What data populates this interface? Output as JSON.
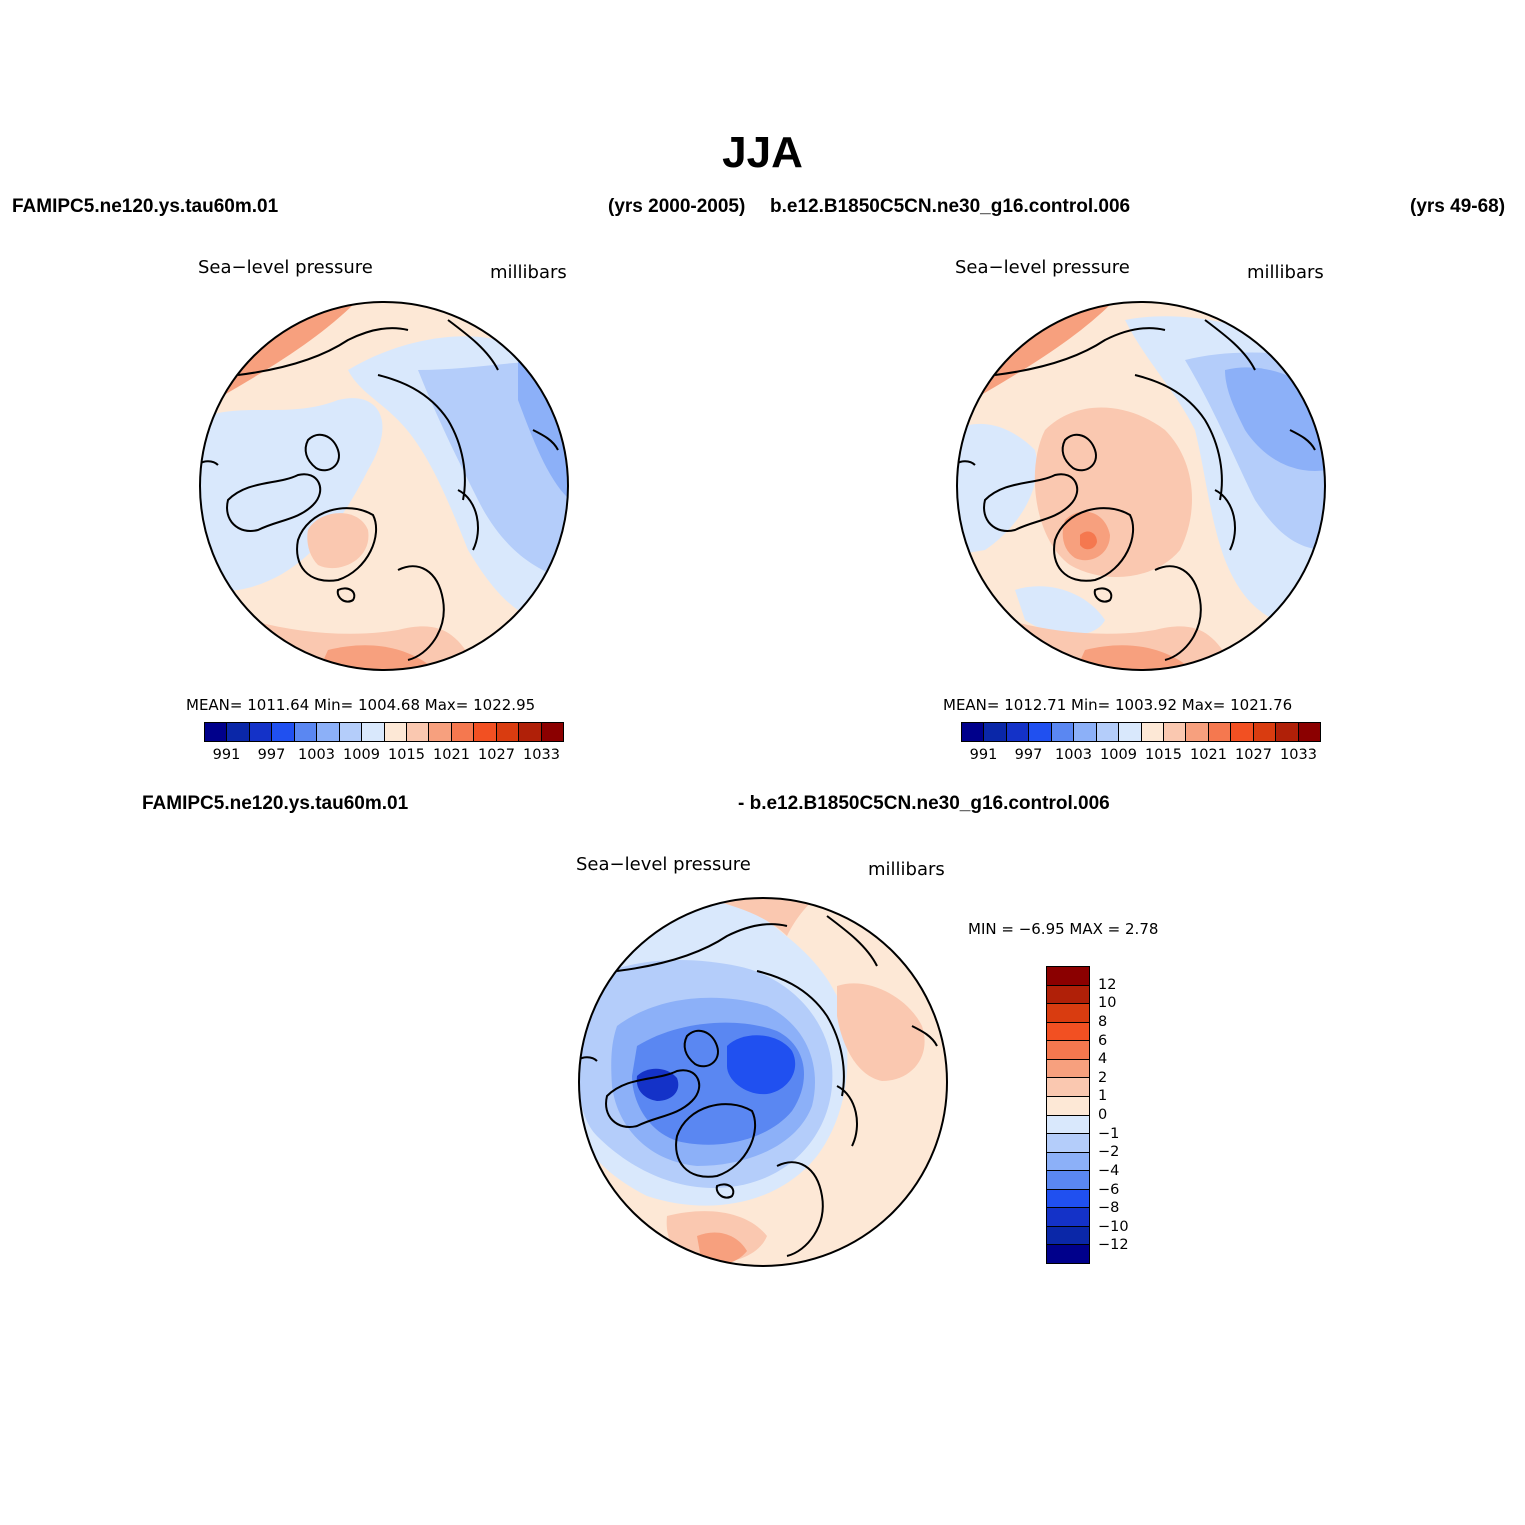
{
  "title": "JJA",
  "header": {
    "case1": "FAMIPC5.ne120.ys.tau60m.01",
    "years1": "(yrs 2000-2005)",
    "case2": "b.e12.B1850C5CN.ne30_g16.control.006",
    "years2": "(yrs 49-68)"
  },
  "diff_header": {
    "left": "FAMIPC5.ne120.ys.tau60m.01",
    "right": "- b.e12.B1850C5CN.ne30_g16.control.006"
  },
  "panels": [
    {
      "variable": "Sea−level pressure",
      "units": "millibars",
      "stats": "MEAN=  1011.64    Min=  1004.68    Max=  1022.95"
    },
    {
      "variable": "Sea−level pressure",
      "units": "millibars",
      "stats": "MEAN=  1012.71    Min=  1003.92    Max=  1021.76"
    }
  ],
  "diff_panel": {
    "variable": "Sea−level pressure",
    "units": "millibars",
    "stats": "MIN =    −6.95  MAX =     2.78"
  },
  "colorbar": {
    "colors": [
      "#00008b",
      "#0a27a8",
      "#1432c8",
      "#2050f0",
      "#5a87f2",
      "#8cb0f8",
      "#b4cdfa",
      "#d9e8fc",
      "#fde8d6",
      "#fac8b0",
      "#f7a07e",
      "#f5784f",
      "#f25022",
      "#d93c10",
      "#b02008",
      "#8b0000"
    ],
    "tick_labels": [
      "991",
      "997",
      "1003",
      "1009",
      "1015",
      "1021",
      "1027",
      "1033"
    ]
  },
  "diff_colorbar": {
    "colors": [
      "#8b0000",
      "#b02008",
      "#d93c10",
      "#f25022",
      "#f5784f",
      "#f7a07e",
      "#fac8b0",
      "#fde8d6",
      "#d9e8fc",
      "#b4cdfa",
      "#8cb0f8",
      "#5a87f2",
      "#2050f0",
      "#1432c8",
      "#0a27a8",
      "#00008b"
    ],
    "tick_labels": [
      "12",
      "10",
      "8",
      "6",
      "4",
      "2",
      "1",
      "0",
      "−1",
      "−2",
      "−4",
      "−6",
      "−8",
      "−10",
      "−12"
    ]
  }
}
